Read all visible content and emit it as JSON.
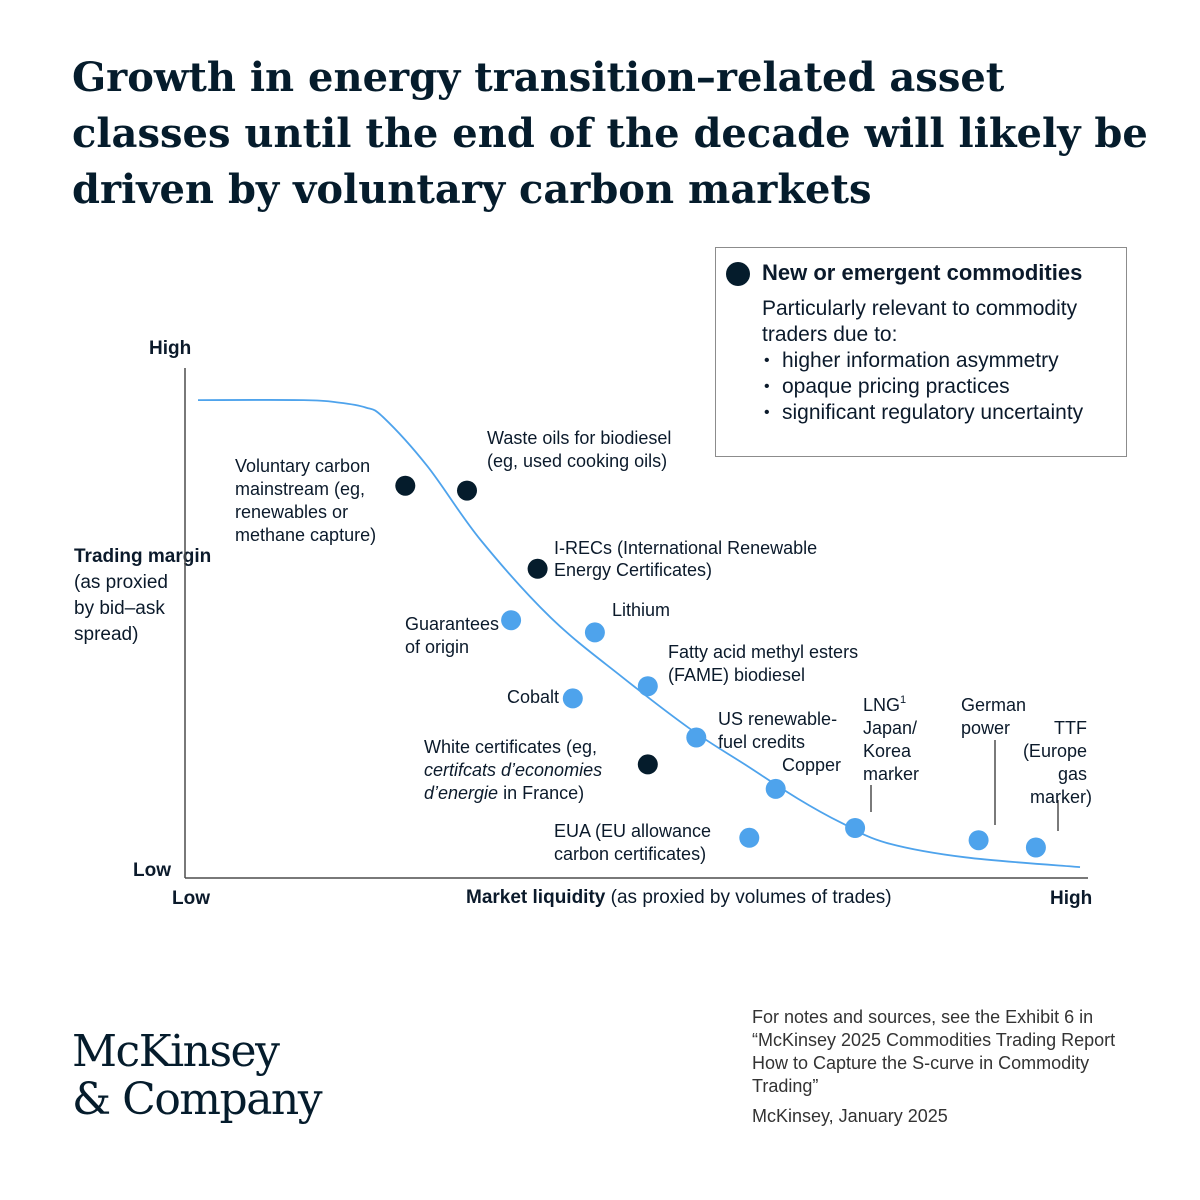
{
  "title": "Growth in energy transition–related asset classes until the end of the decade will likely be driven by voluntary carbon markets",
  "legend": {
    "title": "New or emergent commodities",
    "description": "Particularly relevant to commodity traders due to:",
    "bullets": [
      "higher information asymmetry",
      "opaque pricing practices",
      "significant regulatory uncertainty"
    ],
    "dot_color": "#051c2c"
  },
  "colors": {
    "new_commodity": "#051c2c",
    "other_commodity": "#4ea3ec",
    "curve": "#4ea3ec"
  },
  "footer": {
    "notes": "For notes and sources, see the Exhibit 6 in “McKinsey 2025 Commodities Trading Report  How to Capture the S-curve in Commodity Trading”",
    "credit": "McKinsey, January 2025",
    "logo_line1": "McKinsey",
    "logo_line2": "& Company"
  },
  "chart_data": {
    "type": "scatter",
    "xlabel": "Market liquidity",
    "xlabel_note": "(as proxied by volumes of trades)",
    "ylabel": "Trading margin",
    "ylabel_note": "(as proxied by bid–ask spread)",
    "x_ticks": [
      "Low",
      "High"
    ],
    "y_ticks": [
      "Low",
      "High"
    ],
    "xlim": [
      0,
      100
    ],
    "ylim": [
      0,
      100
    ],
    "grid": false,
    "legend_position": "top-right",
    "curve": {
      "x": [
        0,
        12,
        16,
        19,
        21,
        26,
        32,
        40,
        48,
        56,
        62,
        68,
        73,
        78,
        87,
        100
      ],
      "y": [
        96.5,
        96.5,
        96,
        95,
        93,
        83,
        68,
        52,
        40,
        29,
        22,
        15,
        10,
        6,
        3,
        1
      ]
    },
    "points": [
      {
        "label": "Voluntary carbon mainstream (eg, renewables or methane capture)",
        "x": 23.5,
        "y": 79,
        "category": "new"
      },
      {
        "label": "Waste oils for biodiesel (eg, used cooking oils)",
        "x": 30.5,
        "y": 78,
        "category": "new"
      },
      {
        "label": "I-RECs (International Renewable Energy Certificates)",
        "x": 38.5,
        "y": 62,
        "category": "new"
      },
      {
        "label": "Guarantees of origin",
        "x": 35.5,
        "y": 51.5,
        "category": "other"
      },
      {
        "label": "Lithium",
        "x": 45,
        "y": 49,
        "category": "other"
      },
      {
        "label": "Fatty acid methyl esters (FAME) biodiesel",
        "x": 51,
        "y": 38,
        "category": "other"
      },
      {
        "label": "Cobalt",
        "x": 42.5,
        "y": 35.5,
        "category": "other"
      },
      {
        "label": "US renewable-fuel credits",
        "x": 56.5,
        "y": 27.5,
        "category": "other"
      },
      {
        "label": "White certificates (eg, certifcats d’economies d’energie in France)",
        "x": 51,
        "y": 22,
        "category": "new"
      },
      {
        "label": "Copper",
        "x": 65.5,
        "y": 17,
        "category": "other"
      },
      {
        "label": "EUA (EU allowance carbon certificates)",
        "x": 62.5,
        "y": 7,
        "category": "other"
      },
      {
        "label": "LNG¹ Japan/ Korea marker",
        "x": 74.5,
        "y": 9,
        "category": "other"
      },
      {
        "label": "German power",
        "x": 88.5,
        "y": 6.5,
        "category": "other"
      },
      {
        "label": "TTF (Europe gas marker)",
        "x": 95,
        "y": 5,
        "category": "other"
      }
    ]
  },
  "labels": {
    "voluntary_carbon": [
      "Voluntary carbon",
      "mainstream (eg,",
      "renewables or",
      "methane capture)"
    ],
    "waste_oils": [
      "Waste oils for biodiesel",
      "(eg, used cooking oils)"
    ],
    "irecs": [
      "I-RECs (International Renewable",
      "Energy Certificates)"
    ],
    "guarantees": [
      "Guarantees",
      "of origin"
    ],
    "lithium": [
      "Lithium"
    ],
    "fame": [
      "Fatty acid methyl esters",
      "(FAME) biodiesel"
    ],
    "cobalt": [
      "Cobalt"
    ],
    "us_fuel": [
      "US renewable-",
      "fuel credits"
    ],
    "white_cert_line1": "White certificates (eg,",
    "white_cert_line2": "certifcats d’economies",
    "white_cert_line3_italic": "d’energie",
    "white_cert_line3_rest": " in France)",
    "copper": [
      "Copper"
    ],
    "eua": [
      "EUA (EU allowance",
      "carbon certificates)"
    ],
    "lng_line1": "LNG",
    "lng_sup": "1",
    "lng_rest": [
      "Japan/",
      "Korea",
      "marker"
    ],
    "german": [
      "German",
      "power"
    ],
    "ttf": [
      "TTF",
      "(Europe",
      "gas",
      "marker)"
    ]
  }
}
